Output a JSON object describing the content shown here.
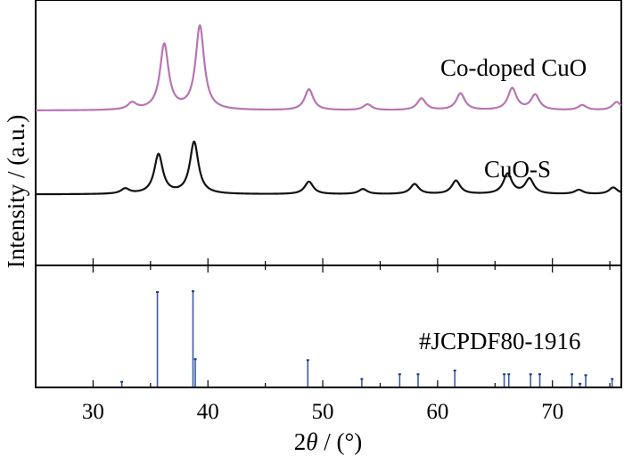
{
  "chart_data": {
    "type": "line",
    "xlabel": "2θ / (°)",
    "xlabel_parts": {
      "prefix": "2",
      "symbol": "θ",
      "suffix": " / (°)"
    },
    "ylabel": "Intensity / (a.u.)",
    "xlim": [
      25,
      76
    ],
    "xticks": [
      30,
      40,
      50,
      60,
      70
    ],
    "grid": false,
    "series": [
      {
        "name": "Co-doped CuO",
        "color": "#b874b3",
        "baseline": 1.55,
        "peaks": [
          {
            "x": 33.4,
            "y": 0.08
          },
          {
            "x": 36.2,
            "y": 0.78
          },
          {
            "x": 39.3,
            "y": 1.0
          },
          {
            "x": 48.8,
            "y": 0.25
          },
          {
            "x": 53.9,
            "y": 0.07
          },
          {
            "x": 58.6,
            "y": 0.14
          },
          {
            "x": 62.0,
            "y": 0.2
          },
          {
            "x": 66.5,
            "y": 0.26
          },
          {
            "x": 68.5,
            "y": 0.18
          },
          {
            "x": 72.6,
            "y": 0.06
          },
          {
            "x": 75.6,
            "y": 0.1
          }
        ]
      },
      {
        "name": "CuO-S",
        "color": "#111111",
        "baseline": 0.55,
        "peaks": [
          {
            "x": 32.8,
            "y": 0.06
          },
          {
            "x": 35.7,
            "y": 0.47
          },
          {
            "x": 38.8,
            "y": 0.62
          },
          {
            "x": 48.8,
            "y": 0.15
          },
          {
            "x": 53.5,
            "y": 0.06
          },
          {
            "x": 58.0,
            "y": 0.12
          },
          {
            "x": 61.6,
            "y": 0.16
          },
          {
            "x": 66.1,
            "y": 0.24
          },
          {
            "x": 68.0,
            "y": 0.18
          },
          {
            "x": 72.3,
            "y": 0.05
          },
          {
            "x": 75.3,
            "y": 0.08
          }
        ]
      }
    ],
    "reference": {
      "name": "#JCPDF80-1916",
      "color": "#3a5ba8",
      "lines": [
        {
          "x": 32.5,
          "y": 0.05
        },
        {
          "x": 35.6,
          "y": 1.0
        },
        {
          "x": 38.7,
          "y": 1.01
        },
        {
          "x": 38.9,
          "y": 0.29
        },
        {
          "x": 48.7,
          "y": 0.28
        },
        {
          "x": 53.4,
          "y": 0.08
        },
        {
          "x": 56.7,
          "y": 0.13
        },
        {
          "x": 58.3,
          "y": 0.13
        },
        {
          "x": 61.5,
          "y": 0.17
        },
        {
          "x": 65.8,
          "y": 0.13
        },
        {
          "x": 66.2,
          "y": 0.13
        },
        {
          "x": 68.1,
          "y": 0.13
        },
        {
          "x": 68.9,
          "y": 0.13
        },
        {
          "x": 71.7,
          "y": 0.13
        },
        {
          "x": 72.4,
          "y": 0.03
        },
        {
          "x": 72.9,
          "y": 0.12
        },
        {
          "x": 75.2,
          "y": 0.08
        }
      ]
    }
  }
}
